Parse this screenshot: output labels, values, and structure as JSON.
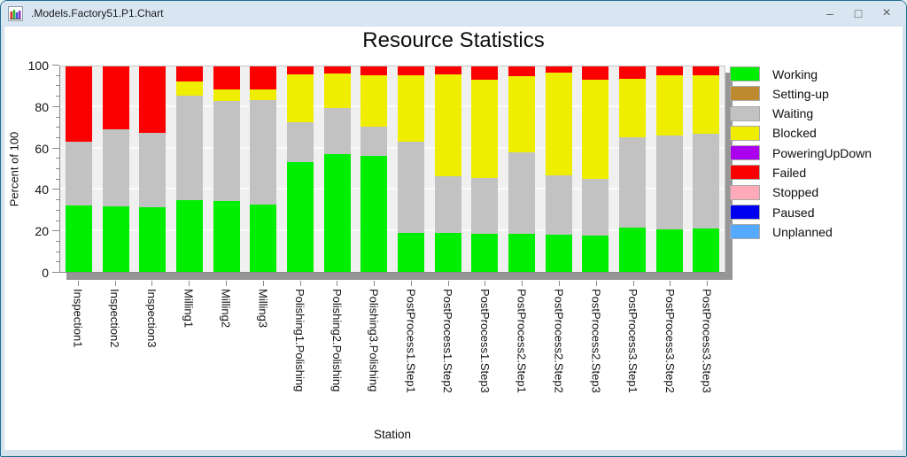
{
  "window": {
    "title": ".Models.Factory51.P1.Chart",
    "controls": {
      "minimize_icon": "–",
      "maximize_icon": "□",
      "close_icon": "×"
    }
  },
  "chart_data": {
    "type": "bar",
    "stacked": true,
    "title": "Resource Statistics",
    "xlabel": "Station",
    "ylabel": "Percent of 100",
    "ylim": [
      0,
      100
    ],
    "y_major_ticks": [
      0,
      20,
      40,
      60,
      80,
      100
    ],
    "y_minor_step": 5,
    "grid": "horizontal-major",
    "legend_position": "right",
    "categories": [
      "Inspection1",
      "Inspection2",
      "Inspection3",
      "Milling1",
      "Milling2",
      "Milling3",
      "Polishing1.Polishing",
      "Polishing2.Polishing",
      "Polishing3.Polishing",
      "PostProcess1.Step1",
      "PostProcess1.Step2",
      "PostProcess1.Step3",
      "PostProcess2.Step1",
      "PostProcess2.Step2",
      "PostProcess2.Step3",
      "PostProcess3.Step1",
      "PostProcess3.Step2",
      "PostProcess3.Step3"
    ],
    "series": [
      {
        "name": "Working",
        "color": "#00ee00",
        "values": [
          32.4,
          32.1,
          31.4,
          35.0,
          34.5,
          32.8,
          53.3,
          57.4,
          56.6,
          18.9,
          19.1,
          18.6,
          18.6,
          17.9,
          17.7,
          21.5,
          20.7,
          21.0
        ]
      },
      {
        "name": "Setting-up",
        "color": "#be8a2f",
        "values": [
          0,
          0,
          0,
          0,
          0,
          0,
          0,
          0,
          0,
          0,
          0,
          0,
          0,
          0,
          0,
          0,
          0,
          0
        ]
      },
      {
        "name": "Waiting",
        "color": "#c2c2c2",
        "values": [
          30.9,
          37.3,
          36.3,
          50.8,
          48.8,
          50.9,
          19.4,
          22.4,
          14.0,
          44.4,
          27.6,
          27.3,
          39.7,
          29.2,
          27.5,
          44.1,
          45.6,
          46.3
        ]
      },
      {
        "name": "Blocked",
        "color": "#f0ee00",
        "values": [
          0,
          0,
          0,
          6.9,
          5.7,
          5.0,
          23.4,
          16.7,
          25.2,
          32.2,
          49.4,
          47.8,
          37.1,
          49.8,
          48.5,
          28.5,
          29.2,
          28.2
        ]
      },
      {
        "name": "PoweringUpDown",
        "color": "#aa00ee",
        "values": [
          0,
          0,
          0,
          0,
          0,
          0,
          0,
          0,
          0,
          0,
          0,
          0,
          0,
          0,
          0,
          0,
          0,
          0
        ]
      },
      {
        "name": "Failed",
        "color": "#fb0000",
        "values": [
          36.7,
          30.6,
          32.3,
          7.3,
          11.0,
          11.3,
          3.9,
          3.5,
          4.2,
          4.5,
          3.9,
          6.3,
          4.6,
          3.1,
          6.3,
          5.9,
          4.5,
          4.5
        ]
      },
      {
        "name": "Stopped",
        "color": "#ffaab9",
        "values": [
          0,
          0,
          0,
          0,
          0,
          0,
          0,
          0,
          0,
          0,
          0,
          0,
          0,
          0,
          0,
          0,
          0,
          0
        ]
      },
      {
        "name": "Paused",
        "color": "#0000f0",
        "values": [
          0,
          0,
          0,
          0,
          0,
          0,
          0,
          0,
          0,
          0,
          0,
          0,
          0,
          0,
          0,
          0,
          0,
          0
        ]
      },
      {
        "name": "Unplanned",
        "color": "#55aaff",
        "values": [
          0,
          0,
          0,
          0,
          0,
          0,
          0,
          0,
          0,
          0,
          0,
          0,
          0,
          0,
          0,
          0,
          0,
          0
        ]
      }
    ]
  }
}
